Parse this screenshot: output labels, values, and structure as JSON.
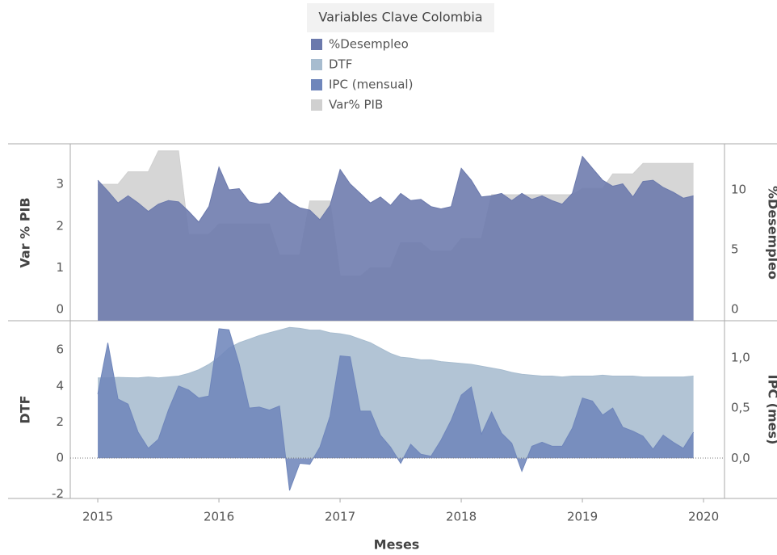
{
  "chart_data": [
    {
      "type": "area",
      "title": "Variables Clave Colombia",
      "y_label": "Var % PIB",
      "y2_label": "%Desempleo",
      "x": [
        2015,
        2015.083,
        2015.167,
        2015.25,
        2015.333,
        2015.417,
        2015.5,
        2015.583,
        2015.667,
        2015.75,
        2015.833,
        2015.917,
        2016,
        2016.083,
        2016.167,
        2016.25,
        2016.333,
        2016.417,
        2016.5,
        2016.583,
        2016.667,
        2016.75,
        2016.833,
        2016.917,
        2017,
        2017.083,
        2017.167,
        2017.25,
        2017.333,
        2017.417,
        2017.5,
        2017.583,
        2017.667,
        2017.75,
        2017.833,
        2017.917,
        2018,
        2018.083,
        2018.167,
        2018.25,
        2018.333,
        2018.417,
        2018.5,
        2018.583,
        2018.667,
        2018.75,
        2018.833,
        2018.917,
        2019,
        2019.083,
        2019.167,
        2019.25,
        2019.333,
        2019.417,
        2019.5,
        2019.583,
        2019.667,
        2019.75,
        2019.833,
        2019.917
      ],
      "xlim": [
        2014.773,
        2020.173
      ],
      "ylim": [
        -0.27,
        3.97
      ],
      "yticks": [
        0,
        1,
        2,
        3
      ],
      "y2lim": [
        -0.95,
        13.85
      ],
      "y2ticks": [
        0,
        5,
        10
      ],
      "series": [
        {
          "name": "Var% PIB",
          "color": "#d0d0d0",
          "values": [
            3.0,
            3.0,
            3.0,
            3.3,
            3.3,
            3.3,
            3.8,
            3.8,
            3.8,
            1.8,
            1.8,
            1.8,
            2.05,
            2.05,
            2.05,
            2.05,
            2.05,
            2.05,
            1.3,
            1.3,
            1.3,
            2.6,
            2.6,
            2.6,
            0.8,
            0.8,
            0.8,
            1.0,
            1.0,
            1.0,
            1.6,
            1.6,
            1.6,
            1.4,
            1.4,
            1.4,
            1.7,
            1.7,
            1.7,
            2.75,
            2.75,
            2.75,
            2.75,
            2.75,
            2.75,
            2.75,
            2.75,
            2.75,
            2.9,
            2.9,
            2.9,
            3.25,
            3.25,
            3.25,
            3.5,
            3.5,
            3.5,
            3.5,
            3.5,
            3.5
          ]
        },
        {
          "name": "%Desempleo",
          "color": "#6b79ac",
          "axis": "y2",
          "values": [
            10.8,
            9.9,
            8.9,
            9.5,
            8.9,
            8.2,
            8.8,
            9.1,
            9.0,
            8.2,
            7.3,
            8.6,
            11.9,
            10.0,
            10.1,
            9.0,
            8.8,
            8.9,
            9.8,
            9.0,
            8.5,
            8.3,
            7.5,
            8.7,
            11.7,
            10.5,
            9.7,
            8.9,
            9.4,
            8.7,
            9.7,
            9.1,
            9.2,
            8.6,
            8.4,
            8.6,
            11.8,
            10.8,
            9.4,
            9.5,
            9.7,
            9.1,
            9.7,
            9.2,
            9.5,
            9.1,
            8.8,
            9.7,
            12.8,
            11.8,
            10.8,
            10.3,
            10.5,
            9.4,
            10.7,
            10.8,
            10.2,
            9.8,
            9.3,
            9.5
          ]
        }
      ]
    },
    {
      "type": "area",
      "y_label": "DTF",
      "y2_label": "IPC (mes)",
      "x_label": "Meses",
      "x": [
        2015,
        2015.083,
        2015.167,
        2015.25,
        2015.333,
        2015.417,
        2015.5,
        2015.583,
        2015.667,
        2015.75,
        2015.833,
        2015.917,
        2016,
        2016.083,
        2016.167,
        2016.25,
        2016.333,
        2016.417,
        2016.5,
        2016.583,
        2016.667,
        2016.75,
        2016.833,
        2016.917,
        2017,
        2017.083,
        2017.167,
        2017.25,
        2017.333,
        2017.417,
        2017.5,
        2017.583,
        2017.667,
        2017.75,
        2017.833,
        2017.917,
        2018,
        2018.083,
        2018.167,
        2018.25,
        2018.333,
        2018.417,
        2018.5,
        2018.583,
        2018.667,
        2018.75,
        2018.833,
        2018.917,
        2019,
        2019.083,
        2019.167,
        2019.25,
        2019.333,
        2019.417,
        2019.5,
        2019.583,
        2019.667,
        2019.75,
        2019.833,
        2019.917
      ],
      "xlim": [
        2014.773,
        2020.173
      ],
      "xticks": [
        2015,
        2016,
        2017,
        2018,
        2019,
        2020
      ],
      "ylim": [
        -2.24,
        7.62
      ],
      "yticks": [
        -2,
        0,
        2,
        4,
        6
      ],
      "y2lim": [
        -0.4,
        1.37
      ],
      "y2ticks": [
        {
          "value": 0,
          "label": "0,0"
        },
        {
          "value": 0.5,
          "label": "0,5"
        },
        {
          "value": 1,
          "label": "1,0"
        }
      ],
      "series": [
        {
          "name": "DTF",
          "color": "#a7bccf",
          "values": [
            4.45,
            4.45,
            4.48,
            4.46,
            4.45,
            4.5,
            4.45,
            4.5,
            4.55,
            4.7,
            4.9,
            5.2,
            5.6,
            6.1,
            6.4,
            6.6,
            6.8,
            6.95,
            7.1,
            7.25,
            7.2,
            7.1,
            7.1,
            6.95,
            6.9,
            6.8,
            6.6,
            6.4,
            6.1,
            5.8,
            5.6,
            5.55,
            5.45,
            5.45,
            5.35,
            5.3,
            5.25,
            5.2,
            5.1,
            5.0,
            4.9,
            4.75,
            4.65,
            4.6,
            4.55,
            4.55,
            4.5,
            4.55,
            4.55,
            4.55,
            4.6,
            4.55,
            4.55,
            4.55,
            4.5,
            4.5,
            4.5,
            4.5,
            4.5,
            4.55
          ]
        },
        {
          "name": "IPC (mensual)",
          "color": "#6f86bb",
          "axis": "y2",
          "values": [
            0.64,
            1.15,
            0.59,
            0.54,
            0.26,
            0.1,
            0.19,
            0.48,
            0.72,
            0.68,
            0.6,
            0.62,
            1.29,
            1.28,
            0.94,
            0.5,
            0.51,
            0.48,
            0.52,
            -0.32,
            -0.05,
            -0.06,
            0.11,
            0.42,
            1.02,
            1.01,
            0.47,
            0.47,
            0.23,
            0.11,
            -0.05,
            0.14,
            0.04,
            0.02,
            0.18,
            0.38,
            0.63,
            0.71,
            0.24,
            0.46,
            0.25,
            0.15,
            -0.13,
            0.12,
            0.16,
            0.12,
            0.12,
            0.3,
            0.6,
            0.57,
            0.43,
            0.5,
            0.31,
            0.27,
            0.22,
            0.09,
            0.23,
            0.16,
            0.1,
            0.26
          ]
        }
      ]
    }
  ]
}
